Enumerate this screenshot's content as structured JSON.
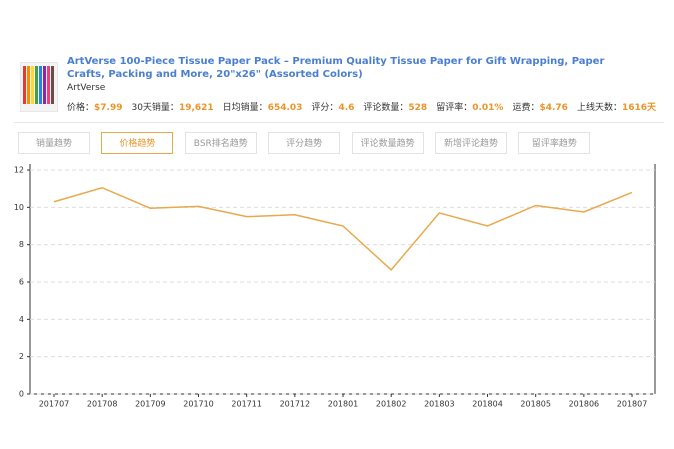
{
  "product": {
    "title": "ArtVerse 100-Piece Tissue Paper Pack – Premium Quality Tissue Paper for Gift Wrapping, Paper Crafts, Packing and More, 20\"x26\" (Assorted Colors)",
    "brand": "ArtVerse",
    "stats": [
      {
        "label": "价格：",
        "value": "$7.99"
      },
      {
        "label": "30天销量：",
        "value": "19,621"
      },
      {
        "label": "日均销量：",
        "value": "654.03"
      },
      {
        "label": "评分：",
        "value": "4.6"
      },
      {
        "label": "评论数量：",
        "value": "528"
      },
      {
        "label": "留评率：",
        "value": "0.01%"
      },
      {
        "label": "运费：",
        "value": "$4.76"
      },
      {
        "label": "上线天数：",
        "value": "1616天"
      }
    ]
  },
  "tabs": {
    "items": [
      "销量趋势",
      "价格趋势",
      "BSR排名趋势",
      "评分趋势",
      "评论数量趋势",
      "新增评论趋势",
      "留评率趋势"
    ],
    "active": 1
  },
  "chart_data": {
    "type": "line",
    "categories": [
      "201707",
      "201708",
      "201709",
      "201710",
      "201711",
      "201712",
      "201801",
      "201802",
      "201803",
      "201804",
      "201805",
      "201806",
      "201807"
    ],
    "series": [
      {
        "name": "价格",
        "color": "#e9a84a",
        "values": [
          10.3,
          11.05,
          9.95,
          10.05,
          9.5,
          9.6,
          9.0,
          6.65,
          9.7,
          9.0,
          10.1,
          9.75,
          10.8
        ]
      }
    ],
    "ylim": [
      0,
      12
    ],
    "yticks": [
      0,
      2,
      4,
      6,
      8,
      10,
      12
    ],
    "grid": true
  }
}
